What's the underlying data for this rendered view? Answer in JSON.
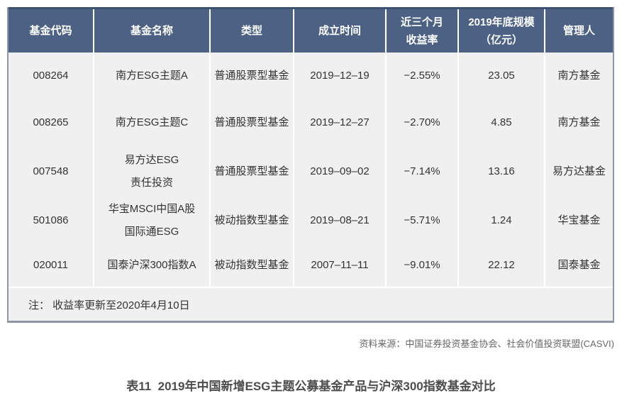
{
  "table": {
    "headers": [
      "基金代码",
      "基金名称",
      "类型",
      "成立时间",
      "近三个月\n收益率",
      "2019年底规模\n（亿元）",
      "管理人"
    ],
    "rows": [
      {
        "code": "008264",
        "name": "南方ESG主题A",
        "type": "普通股票型基金",
        "inception": "2019–12–19",
        "return_3m": "−2.55%",
        "scale_2019": "23.05",
        "manager": "南方基金"
      },
      {
        "code": "008265",
        "name": "南方ESG主题C",
        "type": "普通股票型基金",
        "inception": "2019–12–27",
        "return_3m": "−2.70%",
        "scale_2019": "4.85",
        "manager": "南方基金"
      },
      {
        "code": "007548",
        "name": "易方达ESG\n责任投资",
        "type": "普通股票型基金",
        "inception": "2019–09–02",
        "return_3m": "−7.14%",
        "scale_2019": "13.16",
        "manager": "易方达基金"
      },
      {
        "code": "501086",
        "name": "华宝MSCI中国A股\n国际通ESG",
        "type": "被动指数型基金",
        "inception": "2019–08–21",
        "return_3m": "−5.71%",
        "scale_2019": "1.24",
        "manager": "华宝基金"
      },
      {
        "code": "020011",
        "name": "国泰沪深300指数A",
        "type": "被动指数型基金",
        "inception": "2007–11–11",
        "return_3m": "−9.01%",
        "scale_2019": "22.12",
        "manager": "国泰基金"
      }
    ],
    "note": "注： 收益率更新至2020年4月10日"
  },
  "source": "资料来源：中国证券投资基金协会、社会价值投资联盟(CASVI)",
  "caption": "表11  2019年中国新增ESG主题公募基金产品与沪深300指数基金对比",
  "colors": {
    "header_background": "#4c6183",
    "header_top_border": "#3d5270",
    "header_text": "#ffffff",
    "body_background": "#f0f0f1",
    "cell_separator": "#ffffff",
    "outer_border": "#8e97a6",
    "body_text": "#333333",
    "source_text": "#666666",
    "caption_text": "#4d4d4d"
  }
}
